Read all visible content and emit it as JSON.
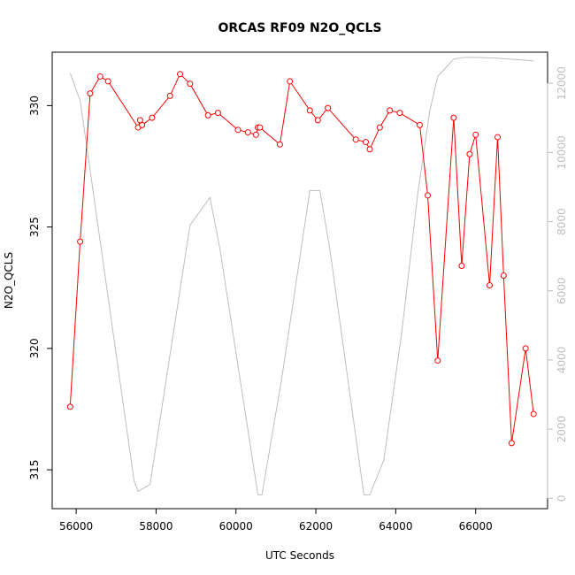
{
  "chart_data": {
    "type": "line",
    "title": "ORCAS RF09 N2O_QCLS",
    "xlabel": "UTC Seconds",
    "ylabel": "N2O_QCLS",
    "xlim": [
      55400,
      67800
    ],
    "ylim": [
      313.4,
      332.2
    ],
    "y2lim": [
      -300,
      12900
    ],
    "x_ticks": [
      "56000",
      "58000",
      "60000",
      "62000",
      "64000",
      "66000"
    ],
    "y_ticks": [
      "315",
      "320",
      "325",
      "330"
    ],
    "y2_ticks": [
      "0",
      "2000",
      "4000",
      "6000",
      "8000",
      "10000",
      "12000"
    ],
    "grid": false,
    "series": [
      {
        "color": "#ff0000",
        "marker": "open-circle",
        "axis": "left",
        "points": [
          [
            55850,
            317.6
          ],
          [
            56100,
            324.4
          ],
          [
            56350,
            330.5
          ],
          [
            56600,
            331.2
          ],
          [
            56800,
            331.0
          ],
          [
            57550,
            329.1
          ],
          [
            57600,
            329.4
          ],
          [
            57650,
            329.2
          ],
          [
            57900,
            329.5
          ],
          [
            58350,
            330.4
          ],
          [
            58600,
            331.3
          ],
          [
            58850,
            330.9
          ],
          [
            59300,
            329.6
          ],
          [
            59550,
            329.7
          ],
          [
            60050,
            329.0
          ],
          [
            60300,
            328.9
          ],
          [
            60500,
            328.8
          ],
          [
            60550,
            329.1
          ],
          [
            60600,
            329.1
          ],
          [
            61100,
            328.4
          ],
          [
            61350,
            331.0
          ],
          [
            61850,
            329.8
          ],
          [
            62050,
            329.4
          ],
          [
            62300,
            329.9
          ],
          [
            63000,
            328.6
          ],
          [
            63250,
            328.5
          ],
          [
            63350,
            328.2
          ],
          [
            63600,
            329.1
          ],
          [
            63850,
            329.8
          ],
          [
            64100,
            329.7
          ],
          [
            64600,
            329.2
          ],
          [
            64800,
            326.3
          ],
          [
            65050,
            319.5
          ],
          [
            65450,
            329.5
          ],
          [
            65650,
            323.4
          ],
          [
            65850,
            328.0
          ],
          [
            66000,
            328.8
          ],
          [
            66350,
            322.6
          ],
          [
            66550,
            328.7
          ],
          [
            66700,
            323.0
          ],
          [
            66900,
            316.1
          ],
          [
            67250,
            320.0
          ],
          [
            67450,
            317.3
          ]
        ]
      },
      {
        "color": "#bebebe",
        "marker": "none",
        "axis": "right",
        "points": [
          [
            55850,
            12300
          ],
          [
            56100,
            11500
          ],
          [
            56300,
            9900
          ],
          [
            57450,
            500
          ],
          [
            57550,
            200
          ],
          [
            57850,
            400
          ],
          [
            58850,
            7900
          ],
          [
            59350,
            8700
          ],
          [
            59600,
            7200
          ],
          [
            60550,
            100
          ],
          [
            60650,
            100
          ],
          [
            61150,
            3500
          ],
          [
            61850,
            8900
          ],
          [
            62100,
            8900
          ],
          [
            62350,
            7200
          ],
          [
            63200,
            100
          ],
          [
            63350,
            100
          ],
          [
            63700,
            1100
          ],
          [
            64150,
            4800
          ],
          [
            64550,
            8800
          ],
          [
            64850,
            11200
          ],
          [
            65050,
            12200
          ],
          [
            65450,
            12700
          ],
          [
            65700,
            12750
          ],
          [
            66000,
            12750
          ],
          [
            66500,
            12730
          ],
          [
            67450,
            12650
          ]
        ]
      }
    ]
  }
}
